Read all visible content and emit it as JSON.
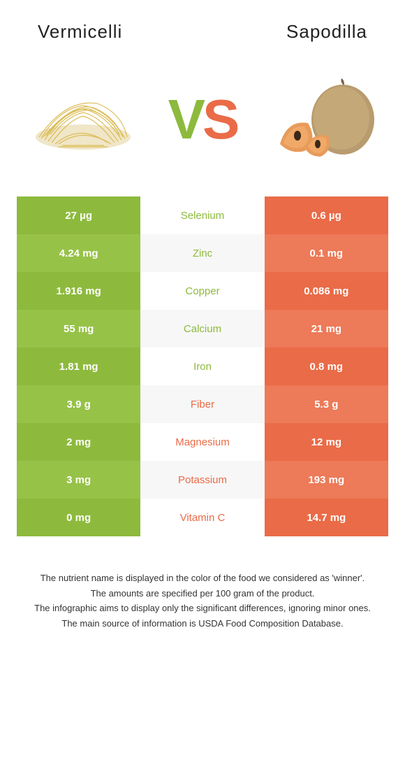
{
  "header": {
    "left_title": "Vermicelli",
    "right_title": "Sapodilla",
    "vs_v": "V",
    "vs_s": "S"
  },
  "colors": {
    "left": "#8dba3d",
    "left_alt": "#97c248",
    "right": "#ea6b47",
    "right_alt": "#ed7a58",
    "mid_bg": "#ffffff",
    "mid_bg_alt": "#f7f7f7",
    "left_text": "#ffffff",
    "right_text": "#ffffff"
  },
  "rows": [
    {
      "nutrient": "Selenium",
      "left": "27 µg",
      "right": "0.6 µg",
      "winner": "left"
    },
    {
      "nutrient": "Zinc",
      "left": "4.24 mg",
      "right": "0.1 mg",
      "winner": "left"
    },
    {
      "nutrient": "Copper",
      "left": "1.916 mg",
      "right": "0.086 mg",
      "winner": "left"
    },
    {
      "nutrient": "Calcium",
      "left": "55 mg",
      "right": "21 mg",
      "winner": "left"
    },
    {
      "nutrient": "Iron",
      "left": "1.81 mg",
      "right": "0.8 mg",
      "winner": "left"
    },
    {
      "nutrient": "Fiber",
      "left": "3.9 g",
      "right": "5.3 g",
      "winner": "right"
    },
    {
      "nutrient": "Magnesium",
      "left": "2 mg",
      "right": "12 mg",
      "winner": "right"
    },
    {
      "nutrient": "Potassium",
      "left": "3 mg",
      "right": "193 mg",
      "winner": "right"
    },
    {
      "nutrient": "Vitamin C",
      "left": "0 mg",
      "right": "14.7 mg",
      "winner": "right"
    }
  ],
  "footer": {
    "line1": "The nutrient name is displayed in the color of the food we considered as 'winner'.",
    "line2": "The amounts are specified per 100 gram of the product.",
    "line3": "The infographic aims to display only the significant differences, ignoring minor ones.",
    "line4": "The main source of information is USDA Food Composition Database."
  }
}
